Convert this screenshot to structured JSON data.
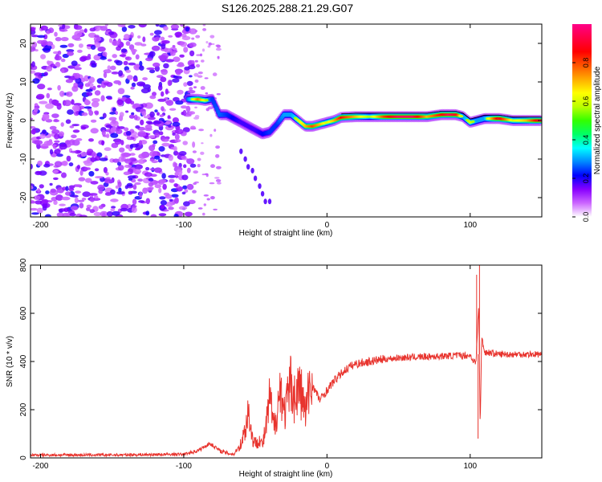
{
  "title": "S126.2025.288.21.29.G07",
  "chart_data": [
    {
      "type": "heatmap",
      "name": "spectrogram",
      "xlabel": "Height of straight line (km)",
      "ylabel": "Frequency (Hz)",
      "xlim": [
        -207,
        150
      ],
      "ylim": [
        -25,
        25
      ],
      "xticks": [
        -200,
        -100,
        0,
        100
      ],
      "yticks": [
        -20,
        -10,
        0,
        10,
        20
      ],
      "colorbar": {
        "label": "Normalized spectral amplitude",
        "range": [
          0,
          1
        ],
        "ticks": [
          "0.0",
          "0.2",
          "0.4",
          "0.6",
          "0.8"
        ],
        "colors": [
          "#ffffff",
          "#cc66ff",
          "#8800ff",
          "#0000ff",
          "#0088ff",
          "#00ffff",
          "#00ff66",
          "#33ff00",
          "#bbff00",
          "#ffff00",
          "#ffaa00",
          "#ff5500",
          "#ff0000",
          "#ff0044",
          "#ff0088"
        ]
      },
      "noise_region_x": [
        -207,
        -93
      ],
      "ridge": {
        "x": [
          -97,
          -90,
          -85,
          -80,
          -75,
          -70,
          -65,
          -60,
          -55,
          -50,
          -45,
          -40,
          -35,
          -30,
          -25,
          -20,
          -15,
          -10,
          -5,
          0,
          5,
          10,
          20,
          30,
          40,
          50,
          60,
          70,
          80,
          85,
          90,
          95,
          100,
          105,
          110,
          120,
          130,
          140,
          150
        ],
        "freq": [
          5.5,
          5.5,
          5.2,
          5.5,
          1.5,
          1.5,
          0.5,
          -0.5,
          -1.5,
          -2.5,
          -3.5,
          -3,
          -1,
          1.5,
          1.5,
          0,
          -1.5,
          -1.5,
          -1,
          -0.5,
          0,
          0.8,
          1.0,
          1.0,
          1.0,
          1.0,
          1.0,
          1.0,
          1.5,
          1.5,
          1.5,
          1.0,
          -0.5,
          0,
          0.5,
          0.5,
          0,
          0,
          0
        ],
        "amplitude": [
          0.45,
          0.75,
          0.6,
          0.4,
          0.45,
          0.4,
          0.35,
          0.3,
          0.3,
          0.3,
          0.35,
          0.4,
          0.4,
          0.5,
          0.5,
          0.6,
          0.7,
          0.8,
          0.7,
          0.6,
          0.7,
          0.85,
          0.7,
          0.55,
          0.8,
          0.95,
          0.95,
          0.7,
          0.85,
          0.95,
          0.9,
          0.5,
          0.6,
          0.5,
          0.5,
          0.9,
          0.6,
          0.7,
          0.95
        ]
      },
      "bottom_branch": {
        "x": [
          -60,
          -57,
          -55,
          -52,
          -50,
          -47,
          -45,
          -43,
          -40
        ],
        "freq": [
          -8,
          -10,
          -12,
          -13,
          -15,
          -17,
          -19,
          -21,
          -21
        ]
      }
    },
    {
      "type": "line",
      "name": "snr",
      "xlabel": "Height of straight line (km)",
      "ylabel": "SNR (10 * v/v)",
      "xlim": [
        -207,
        150
      ],
      "ylim": [
        0,
        800
      ],
      "xticks": [
        -200,
        -100,
        0,
        100
      ],
      "yticks": [
        0,
        200,
        400,
        600,
        800
      ],
      "series": [
        {
          "name": "SNR",
          "color": "#e8342e",
          "x": [
            -207,
            -150,
            -100,
            -90,
            -82,
            -78,
            -75,
            -70,
            -65,
            -60,
            -57,
            -55,
            -52,
            -50,
            -47,
            -45,
            -42,
            -40,
            -37,
            -35,
            -32,
            -30,
            -27,
            -25,
            -22,
            -20,
            -17,
            -15,
            -12,
            -10,
            -5,
            0,
            5,
            10,
            15,
            20,
            30,
            40,
            50,
            60,
            70,
            80,
            90,
            100,
            104,
            106,
            107,
            108,
            110,
            120,
            130,
            140,
            150
          ],
          "y": [
            12,
            12,
            15,
            30,
            60,
            45,
            30,
            20,
            15,
            60,
            120,
            200,
            80,
            60,
            80,
            50,
            150,
            250,
            120,
            200,
            300,
            180,
            250,
            320,
            230,
            300,
            250,
            180,
            300,
            300,
            240,
            280,
            320,
            350,
            375,
            390,
            400,
            410,
            415,
            418,
            420,
            422,
            425,
            425,
            390,
            640,
            120,
            500,
            440,
            430,
            430,
            430,
            430
          ]
        }
      ],
      "spikes": [
        {
          "x": 104.5,
          "y": 760
        },
        {
          "x": 106.5,
          "y": 800
        },
        {
          "x": 105.5,
          "y": 80
        }
      ]
    }
  ]
}
